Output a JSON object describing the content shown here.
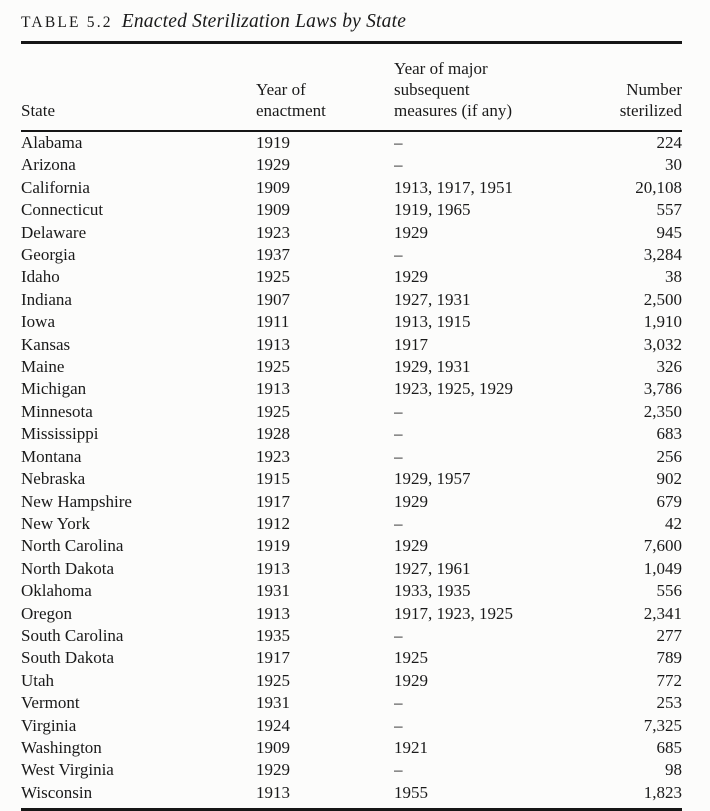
{
  "title": {
    "label": "TABLE 5.2",
    "text": "Enacted Sterilization Laws by State"
  },
  "table": {
    "headers": {
      "state": "State",
      "year_of_enactment": "Year of\nenactment",
      "subsequent_measures": "Year of major\nsubsequent\nmeasures (if any)",
      "number_sterilized": "Number\nsterilized"
    },
    "rows": [
      {
        "state": "Alabama",
        "year": "1919",
        "measures": "–",
        "number": "224"
      },
      {
        "state": "Arizona",
        "year": "1929",
        "measures": "–",
        "number": "30"
      },
      {
        "state": "California",
        "year": "1909",
        "measures": "1913, 1917, 1951",
        "number": "20,108"
      },
      {
        "state": "Connecticut",
        "year": "1909",
        "measures": "1919, 1965",
        "number": "557"
      },
      {
        "state": "Delaware",
        "year": "1923",
        "measures": "1929",
        "number": "945"
      },
      {
        "state": "Georgia",
        "year": "1937",
        "measures": "–",
        "number": "3,284"
      },
      {
        "state": "Idaho",
        "year": "1925",
        "measures": "1929",
        "number": "38"
      },
      {
        "state": "Indiana",
        "year": "1907",
        "measures": "1927, 1931",
        "number": "2,500"
      },
      {
        "state": "Iowa",
        "year": "1911",
        "measures": "1913, 1915",
        "number": "1,910"
      },
      {
        "state": "Kansas",
        "year": "1913",
        "measures": "1917",
        "number": "3,032"
      },
      {
        "state": "Maine",
        "year": "1925",
        "measures": "1929, 1931",
        "number": "326"
      },
      {
        "state": "Michigan",
        "year": "1913",
        "measures": "1923, 1925, 1929",
        "number": "3,786"
      },
      {
        "state": "Minnesota",
        "year": "1925",
        "measures": "–",
        "number": "2,350"
      },
      {
        "state": "Mississippi",
        "year": "1928",
        "measures": "–",
        "number": "683"
      },
      {
        "state": "Montana",
        "year": "1923",
        "measures": "–",
        "number": "256"
      },
      {
        "state": "Nebraska",
        "year": "1915",
        "measures": "1929, 1957",
        "number": "902"
      },
      {
        "state": "New Hampshire",
        "year": "1917",
        "measures": "1929",
        "number": "679"
      },
      {
        "state": "New York",
        "year": "1912",
        "measures": "–",
        "number": "42"
      },
      {
        "state": "North Carolina",
        "year": "1919",
        "measures": "1929",
        "number": "7,600"
      },
      {
        "state": "North Dakota",
        "year": "1913",
        "measures": "1927, 1961",
        "number": "1,049"
      },
      {
        "state": "Oklahoma",
        "year": "1931",
        "measures": "1933, 1935",
        "number": "556"
      },
      {
        "state": "Oregon",
        "year": "1913",
        "measures": "1917, 1923, 1925",
        "number": "2,341"
      },
      {
        "state": "South Carolina",
        "year": "1935",
        "measures": "–",
        "number": "277"
      },
      {
        "state": "South Dakota",
        "year": "1917",
        "measures": "1925",
        "number": "789"
      },
      {
        "state": "Utah",
        "year": "1925",
        "measures": "1929",
        "number": "772"
      },
      {
        "state": "Vermont",
        "year": "1931",
        "measures": "–",
        "number": "253"
      },
      {
        "state": "Virginia",
        "year": "1924",
        "measures": "–",
        "number": "7,325"
      },
      {
        "state": "Washington",
        "year": "1909",
        "measures": "1921",
        "number": "685"
      },
      {
        "state": "West Virginia",
        "year": "1929",
        "measures": "–",
        "number": "98"
      },
      {
        "state": "Wisconsin",
        "year": "1913",
        "measures": "1955",
        "number": "1,823"
      }
    ]
  }
}
